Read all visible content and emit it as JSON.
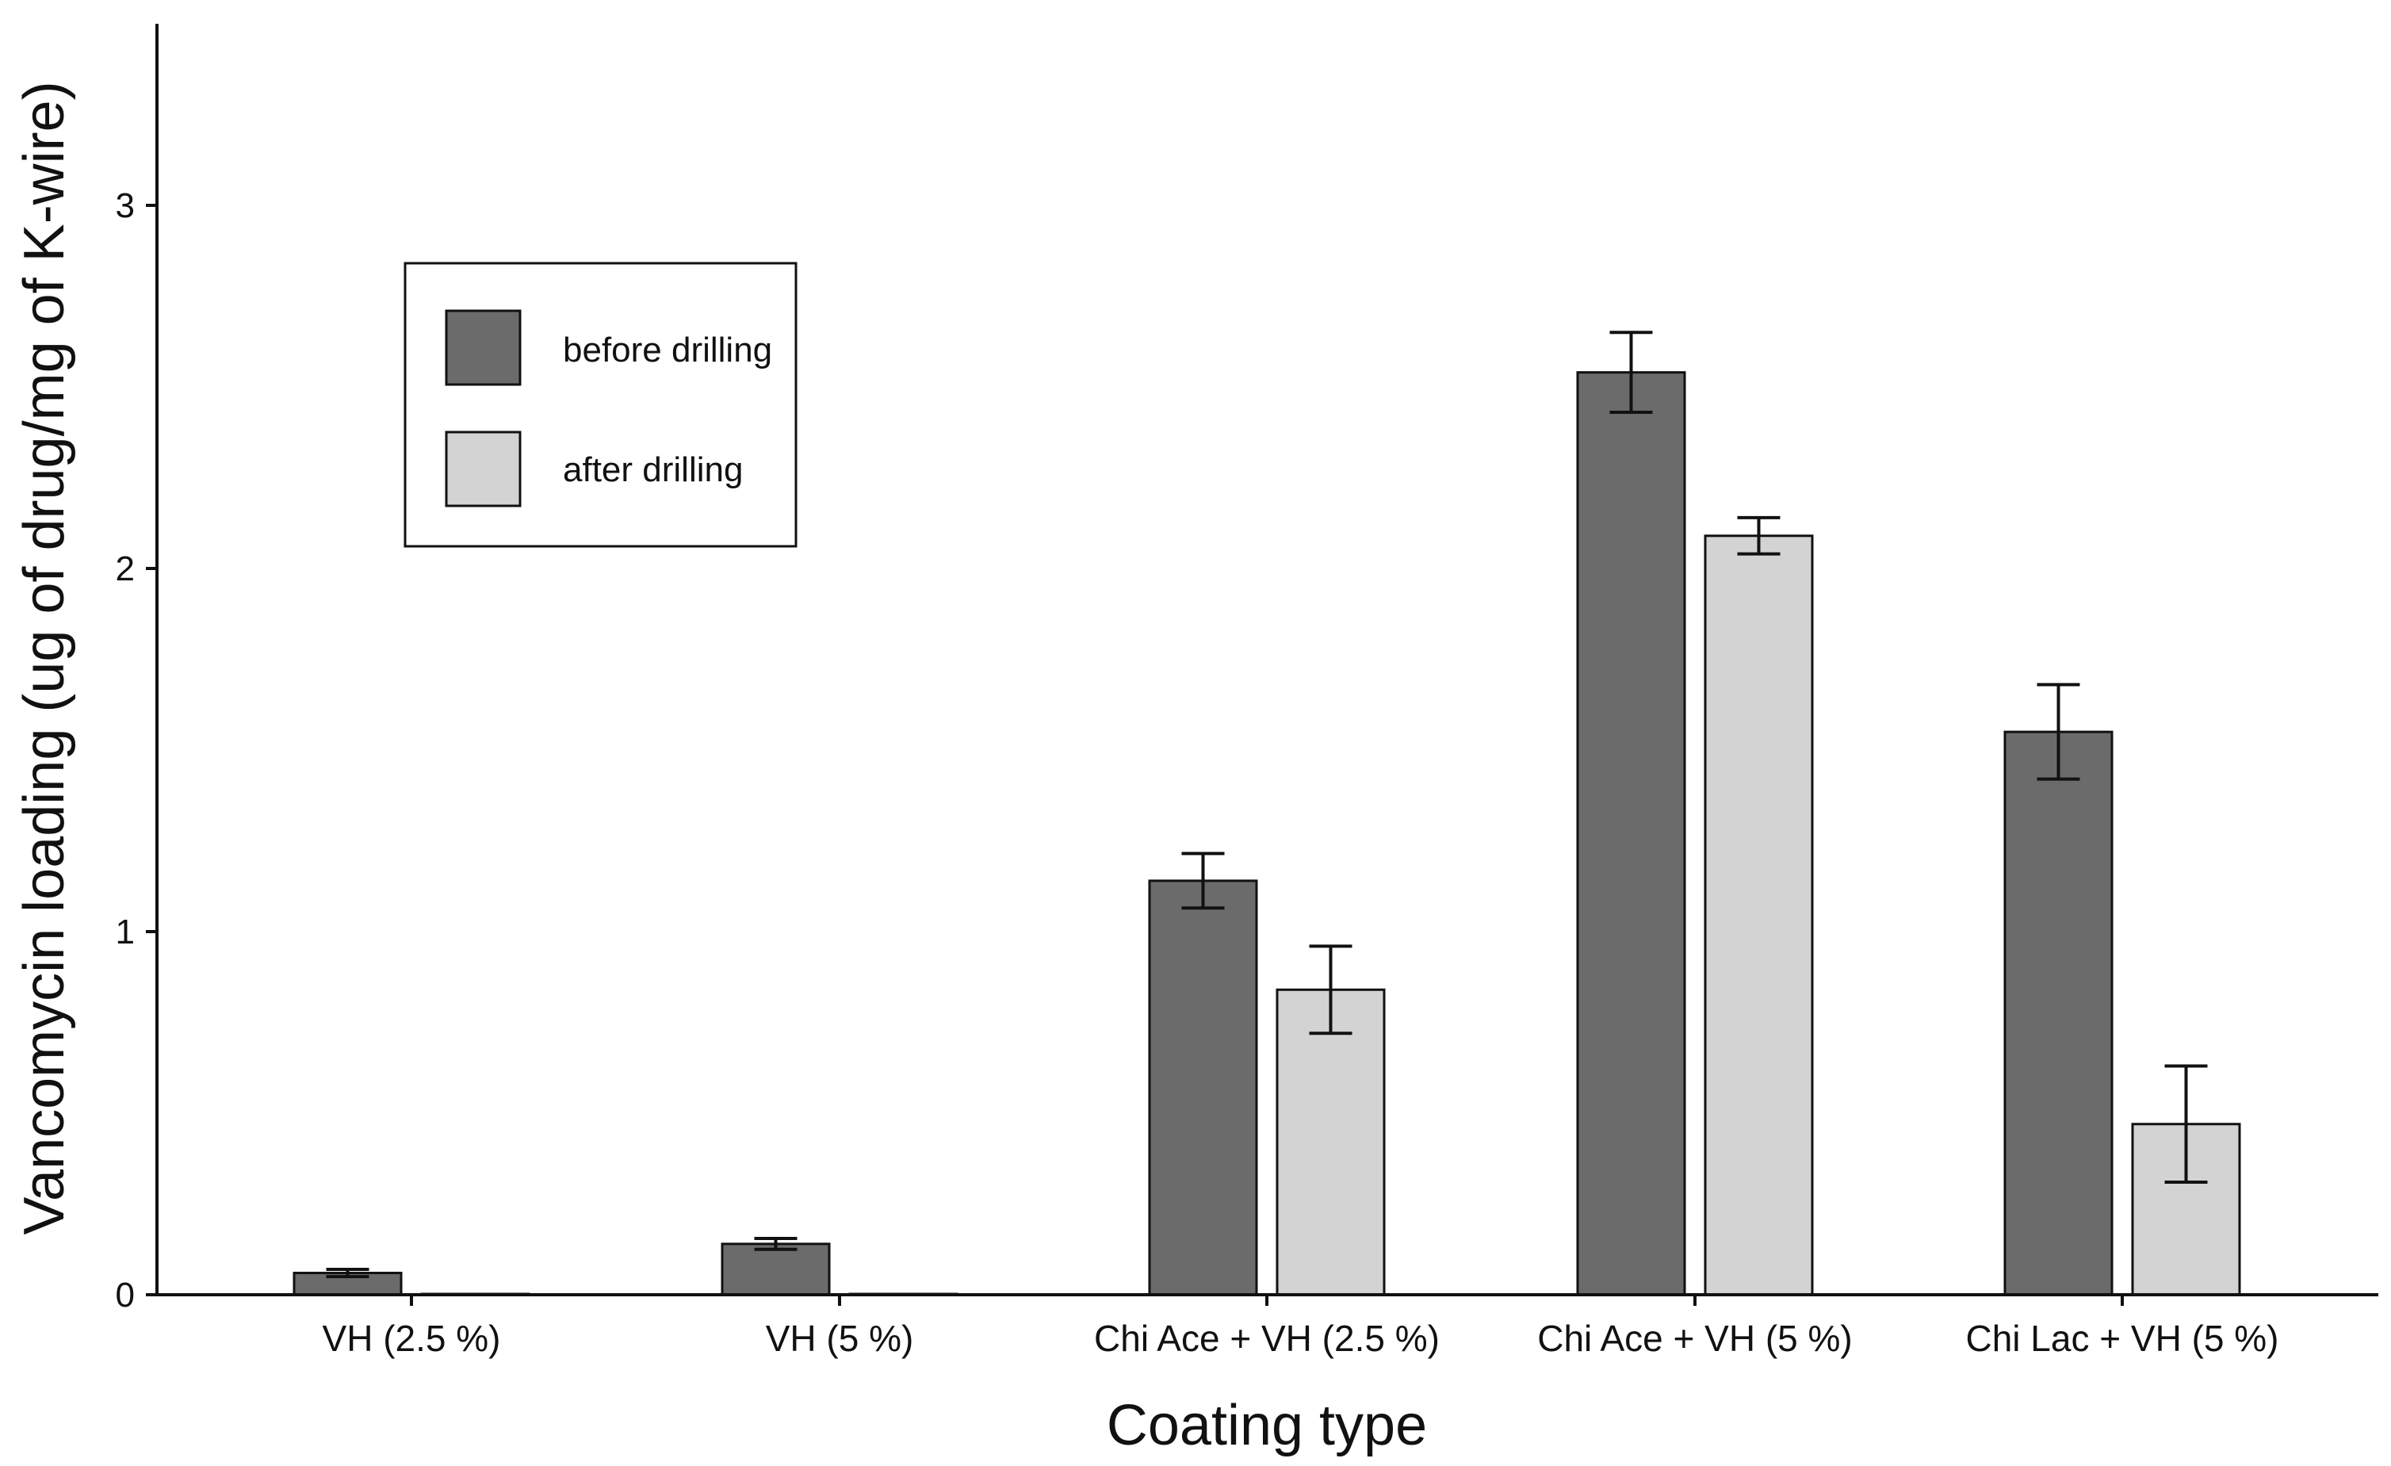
{
  "chart_data": {
    "type": "bar",
    "xlabel": "Coating type",
    "ylabel": "Vancomycin loading (ug of drug/mg of K-wire)",
    "ylim": [
      0,
      3.5
    ],
    "yticks": [
      0,
      1,
      2,
      3
    ],
    "grid": false,
    "legend_position": "top-left",
    "categories": [
      "VH (2.5 %)",
      "VH (5 %)",
      "Chi Ace + VH (2.5 %)",
      "Chi Ace + VH (5 %)",
      "Chi Lac + VH (5 %)"
    ],
    "series": [
      {
        "name": "before drilling",
        "color": "#6b6b6b",
        "values": [
          0.06,
          0.14,
          1.14,
          2.54,
          1.55
        ],
        "errors": [
          0.01,
          0.015,
          0.075,
          0.11,
          0.13
        ]
      },
      {
        "name": "after drilling",
        "color": "#d3d3d3",
        "values": [
          0.0,
          0.0,
          0.84,
          2.09,
          0.47
        ],
        "errors": [
          0.0,
          0.0,
          0.12,
          0.05,
          0.16
        ]
      }
    ]
  }
}
